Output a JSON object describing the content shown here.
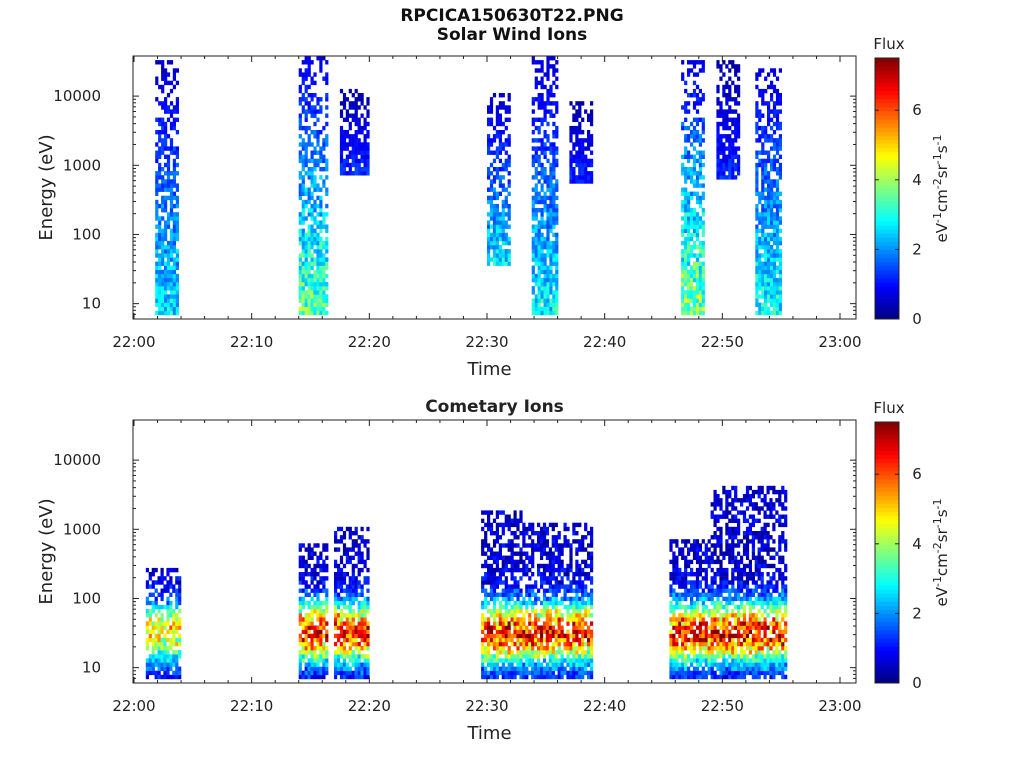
{
  "figure": {
    "title_line1": "RPCICA150630T22.PNG",
    "title_line2": "Solar Wind Ions"
  },
  "chart_data": [
    {
      "type": "heatmap",
      "title": "Solar Wind Ions",
      "xlabel": "Time",
      "ylabel": "Energy (eV)",
      "x_ticks": [
        "22:00",
        "22:10",
        "22:20",
        "22:30",
        "22:40",
        "22:50",
        "23:00"
      ],
      "x_range_minutes": [
        0,
        60
      ],
      "y_scale": "log",
      "y_ticks": [
        10,
        100,
        1000,
        10000
      ],
      "y_tick_labels": [
        "10",
        "100",
        "1000",
        "10000"
      ],
      "ylim": [
        6,
        38000
      ],
      "colorbar": {
        "title": "Flux",
        "label": "eV-1cm-2sr-1s-1",
        "ticks": [
          0,
          2,
          4,
          6
        ],
        "range": [
          0,
          7.5
        ],
        "colormap": "jet"
      },
      "grid": false,
      "bursts": [
        {
          "t_start": 1.8,
          "t_end": 3.8,
          "e_low": 7,
          "e_high": 30000,
          "peak_flux": 3.4,
          "notes": "narrow vertical burst"
        },
        {
          "t_start": 14.0,
          "t_end": 16.3,
          "e_low": 7,
          "e_high": 35000,
          "peak_flux": 4.5
        },
        {
          "t_start": 17.5,
          "t_end": 19.8,
          "e_low": 800,
          "e_high": 12000,
          "peak_flux": 1.5
        },
        {
          "t_start": 30.0,
          "t_end": 32.0,
          "e_low": 40,
          "e_high": 10000,
          "peak_flux": 3.3
        },
        {
          "t_start": 33.8,
          "t_end": 36.0,
          "e_low": 7,
          "e_high": 35000,
          "peak_flux": 3.6
        },
        {
          "t_start": 37.0,
          "t_end": 38.8,
          "e_low": 600,
          "e_high": 8000,
          "peak_flux": 1.5
        },
        {
          "t_start": 46.5,
          "t_end": 48.5,
          "e_low": 7,
          "e_high": 30000,
          "peak_flux": 4.8
        },
        {
          "t_start": 49.5,
          "t_end": 51.5,
          "e_low": 700,
          "e_high": 30000,
          "peak_flux": 1.5
        },
        {
          "t_start": 52.8,
          "t_end": 55.0,
          "e_low": 7,
          "e_high": 25000,
          "peak_flux": 3.8
        }
      ]
    },
    {
      "type": "heatmap",
      "title": "Cometary Ions",
      "xlabel": "Time",
      "ylabel": "Energy (eV)",
      "x_ticks": [
        "22:00",
        "22:10",
        "22:20",
        "22:30",
        "22:40",
        "22:50",
        "23:00"
      ],
      "x_range_minutes": [
        0,
        60
      ],
      "y_scale": "log",
      "y_ticks": [
        10,
        100,
        1000,
        10000
      ],
      "y_tick_labels": [
        "10",
        "100",
        "1000",
        "10000"
      ],
      "ylim": [
        6,
        38000
      ],
      "colorbar": {
        "title": "Flux",
        "label": "eV-1cm-2sr-1s-1",
        "ticks": [
          0,
          2,
          4,
          6
        ],
        "range": [
          0,
          7.5
        ],
        "colormap": "jet"
      },
      "grid": false,
      "bursts": [
        {
          "t_start": 1.0,
          "t_end": 4.0,
          "e_low": 7,
          "e_high": 260,
          "peak_flux": 5.2
        },
        {
          "t_start": 14.0,
          "t_end": 16.5,
          "e_low": 7,
          "e_high": 600,
          "peak_flux": 7.2
        },
        {
          "t_start": 17.0,
          "t_end": 20.0,
          "e_low": 7,
          "e_high": 1000,
          "peak_flux": 7.2
        },
        {
          "t_start": 29.5,
          "t_end": 33.0,
          "e_low": 7,
          "e_high": 1800,
          "peak_flux": 7.3
        },
        {
          "t_start": 33.0,
          "t_end": 39.0,
          "e_low": 7,
          "e_high": 1200,
          "peak_flux": 7.3
        },
        {
          "t_start": 45.5,
          "t_end": 49.0,
          "e_low": 7,
          "e_high": 700,
          "peak_flux": 7.3
        },
        {
          "t_start": 49.0,
          "t_end": 55.5,
          "e_low": 7,
          "e_high": 4000,
          "peak_flux": 7.3
        }
      ]
    }
  ]
}
